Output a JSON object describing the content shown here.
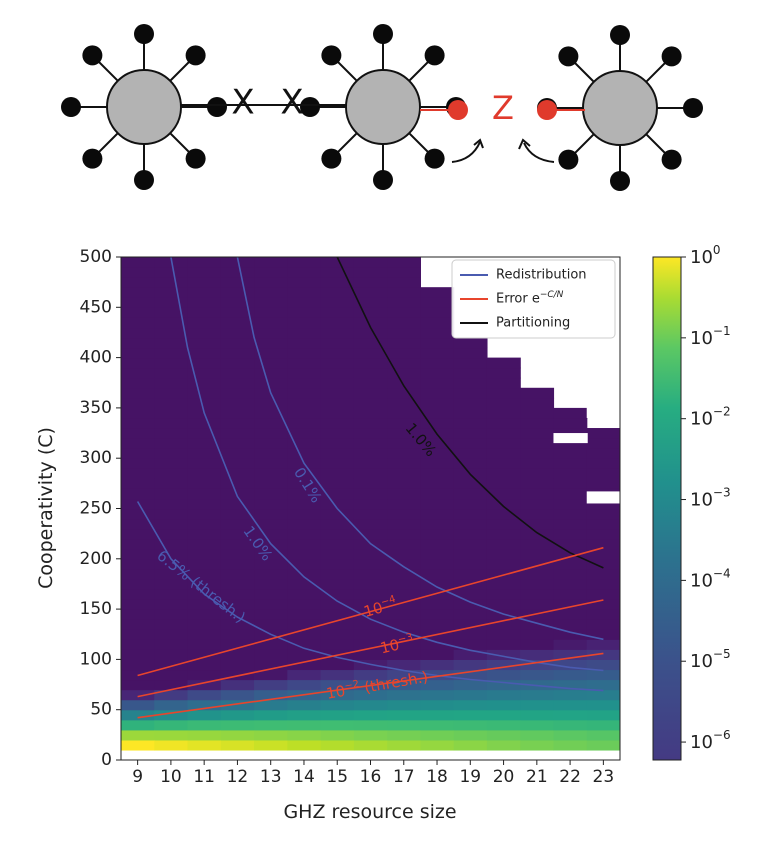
{
  "colors": {
    "redistribution": "#4a5bb0",
    "error": "#e8452c",
    "partitioning": "#111111",
    "node_fill": "#b3b3b3",
    "leaf": "#0a0a0a",
    "accent_red": "#e03a2c"
  },
  "diagram": {
    "x_labels": [
      "X",
      "X"
    ],
    "z_label": "Z"
  },
  "chart_data": {
    "type": "heatmap",
    "xlabel": "GHZ resource size",
    "ylabel": "Cooperativity (C)",
    "x": [
      9,
      10,
      11,
      12,
      13,
      14,
      15,
      16,
      17,
      18,
      19,
      20,
      21,
      22,
      23
    ],
    "x_tick_labels": [
      "9",
      "10",
      "11",
      "12",
      "13",
      "14",
      "15",
      "16",
      "17",
      "18",
      "19",
      "20",
      "21",
      "22",
      "23"
    ],
    "ylim": [
      0,
      500
    ],
    "y_ticks": [
      0,
      50,
      100,
      150,
      200,
      250,
      300,
      350,
      400,
      450,
      500
    ],
    "y_tick_labels": [
      "0",
      "50",
      "100",
      "150",
      "200",
      "250",
      "300",
      "350",
      "400",
      "450",
      "500"
    ],
    "colorbar": {
      "scale": "log",
      "range": [
        6e-07,
        1
      ],
      "ticks": [
        1,
        0.1,
        0.01,
        0.001,
        0.0001,
        1e-05,
        1e-06
      ],
      "tick_base": [
        "10",
        "10",
        "10",
        "10",
        "10",
        "10",
        "10"
      ],
      "tick_exp": [
        "0",
        "−1",
        "−2",
        "−3",
        "−4",
        "−5",
        "−6"
      ]
    },
    "legend": {
      "placement": "top-right",
      "entries": [
        {
          "label": "Redistribution",
          "color": "#4a5bb0"
        },
        {
          "label": "Error e",
          "sup": "−C/N",
          "color": "#e8452c"
        },
        {
          "label": "Partitioning",
          "color": "#111111"
        }
      ]
    },
    "series": [
      {
        "name": "Redistribution 6.5% (thresh.)",
        "kind": "redistribution",
        "label": "6.5% (thresh.)",
        "x": [
          9,
          10,
          11,
          12,
          13,
          14,
          15,
          16,
          17,
          18,
          19,
          20,
          21,
          22,
          23
        ],
        "y": [
          257,
          200,
          165,
          142,
          125,
          111,
          102,
          95,
          89,
          84,
          80,
          77,
          74,
          71,
          69
        ]
      },
      {
        "name": "Redistribution 1.0%",
        "kind": "redistribution",
        "label": "1.0%",
        "x": [
          10,
          10.5,
          11,
          12,
          13,
          14,
          15,
          16,
          17,
          18,
          19,
          20,
          21,
          22,
          23
        ],
        "y": [
          500,
          410,
          345,
          262,
          215,
          182,
          158,
          140,
          127,
          117,
          109,
          103,
          97,
          92,
          89
        ]
      },
      {
        "name": "Redistribution 0.1%",
        "kind": "redistribution",
        "label": "0.1%",
        "x": [
          12,
          12.5,
          13,
          14,
          15,
          16,
          17,
          18,
          19,
          20,
          21,
          22,
          23
        ],
        "y": [
          500,
          420,
          365,
          295,
          250,
          215,
          192,
          172,
          157,
          145,
          136,
          127,
          120
        ]
      },
      {
        "name": "Partitioning 1.0%",
        "kind": "partitioning",
        "label": "1.0%",
        "x": [
          15,
          16,
          17,
          18,
          19,
          20,
          21,
          22,
          23
        ],
        "y": [
          500,
          430,
          372,
          324,
          284,
          252,
          226,
          206,
          191
        ]
      },
      {
        "name": "Error 10^-4",
        "kind": "error",
        "label_base": "10",
        "label_exp": "−4",
        "x": [
          9,
          23
        ],
        "y": [
          84,
          211
        ]
      },
      {
        "name": "Error 10^-3",
        "kind": "error",
        "label_base": "10",
        "label_exp": "−3",
        "x": [
          9,
          23
        ],
        "y": [
          63,
          159
        ]
      },
      {
        "name": "Error 10^-2 (thresh.)",
        "kind": "error",
        "label_base": "10",
        "label_exp": "−2",
        "label_suffix": " (thresh.)",
        "x": [
          9,
          23
        ],
        "y": [
          42,
          106
        ]
      }
    ]
  }
}
